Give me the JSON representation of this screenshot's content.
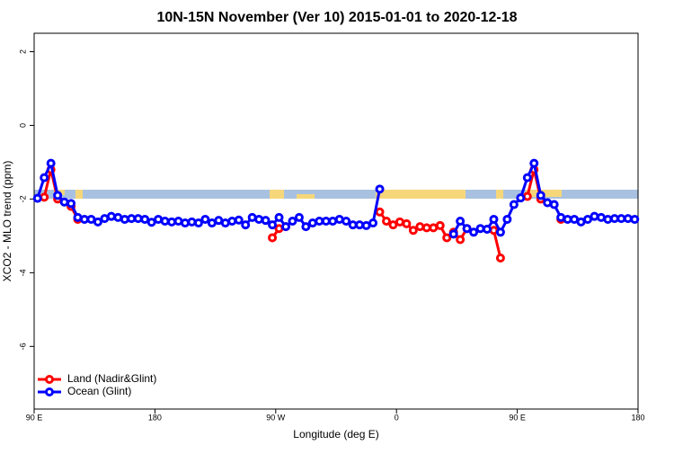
{
  "chart_data": {
    "type": "line",
    "title": "10N-15N November (Ver 10)   2015-01-01 to 2020-12-18",
    "x_label": "Longitude (deg E)",
    "y_label": "XCO2 - MLO trend (ppm)",
    "xlim": [
      90,
      540
    ],
    "xticks": [
      {
        "value": 90,
        "label": "90 E"
      },
      180,
      {
        "value": 270,
        "label": "90 W"
      },
      {
        "value": 360,
        "label": "0"
      },
      {
        "value": 450,
        "label": "90 E"
      },
      {
        "value": 540,
        "label": "180"
      }
    ],
    "ylim": [
      -7.7,
      2.5
    ],
    "yticks": [
      2,
      0,
      -2,
      -4,
      -6
    ],
    "legend": "bottom-left",
    "x": [
      92.5,
      97.5,
      102.5,
      107.5,
      112.5,
      117.5,
      122.5,
      127.5,
      132.5,
      137.5,
      142.5,
      147.5,
      152.5,
      157.5,
      162.5,
      167.5,
      172.5,
      177.5,
      182.5,
      187.5,
      192.5,
      197.5,
      202.5,
      207.5,
      212.5,
      217.5,
      222.5,
      227.5,
      232.5,
      237.5,
      242.5,
      247.5,
      252.5,
      257.5,
      262.5,
      267.5,
      272.5,
      277.5,
      282.5,
      287.5,
      292.5,
      297.5,
      302.5,
      307.5,
      312.5,
      317.5,
      322.5,
      327.5,
      332.5,
      337.5,
      342.5,
      347.5,
      352.5,
      357.5,
      362.5,
      367.5,
      372.5,
      377.5,
      382.5,
      387.5,
      392.5,
      397.5,
      402.5,
      407.5,
      412.5,
      417.5,
      422.5,
      427.5,
      432.5,
      437.5,
      442.5,
      447.5,
      452.5,
      457.5,
      462.5,
      467.5,
      472.5,
      477.5,
      482.5,
      487.5,
      492.5,
      497.5,
      502.5,
      507.5,
      512.5,
      517.5,
      522.5,
      527.5,
      532.5,
      537.5
    ],
    "series": [
      {
        "name": "Land (Nadir&Glint)",
        "color": "#ff0000",
        "values": [
          null,
          -1.95,
          -1.2,
          -2.0,
          null,
          -2.2,
          -2.55,
          null,
          null,
          null,
          null,
          null,
          null,
          null,
          null,
          null,
          null,
          null,
          null,
          null,
          null,
          null,
          null,
          null,
          null,
          null,
          null,
          null,
          null,
          null,
          null,
          null,
          null,
          null,
          null,
          -3.05,
          -2.8,
          -2.75,
          null,
          null,
          null,
          null,
          null,
          null,
          null,
          null,
          null,
          null,
          null,
          null,
          null,
          -2.35,
          -2.6,
          -2.7,
          -2.62,
          -2.67,
          -2.85,
          -2.75,
          -2.78,
          -2.78,
          -2.72,
          -3.05,
          -2.9,
          -3.1,
          -2.8,
          null,
          null,
          null,
          -2.85,
          -3.6,
          null,
          null,
          null,
          -1.93,
          -1.2,
          -2.0,
          null,
          null,
          -2.55,
          null,
          null,
          null,
          null,
          null,
          null,
          null,
          null,
          null,
          null,
          null
        ]
      },
      {
        "name": "Ocean (Glint)",
        "color": "#0000ff",
        "values": [
          -1.98,
          -1.42,
          -1.03,
          -1.9,
          -2.08,
          -2.12,
          -2.5,
          -2.55,
          -2.55,
          -2.62,
          -2.53,
          -2.47,
          -2.5,
          -2.55,
          -2.53,
          -2.53,
          -2.55,
          -2.63,
          -2.55,
          -2.6,
          -2.62,
          -2.6,
          -2.65,
          -2.62,
          -2.65,
          -2.55,
          -2.65,
          -2.58,
          -2.65,
          -2.6,
          -2.57,
          -2.7,
          -2.5,
          -2.55,
          -2.58,
          -2.7,
          -2.5,
          -2.75,
          -2.6,
          -2.5,
          -2.75,
          -2.65,
          -2.6,
          -2.6,
          -2.6,
          -2.55,
          -2.6,
          -2.7,
          -2.7,
          -2.72,
          -2.65,
          -1.73,
          null,
          null,
          null,
          null,
          null,
          null,
          null,
          null,
          null,
          null,
          -2.95,
          -2.6,
          -2.8,
          -2.9,
          -2.8,
          -2.82,
          -2.55,
          -2.9,
          -2.55,
          -2.15,
          -1.97,
          -1.42,
          -1.03,
          -1.9,
          -2.1,
          -2.15,
          -2.5,
          -2.55,
          -2.55,
          -2.62,
          -2.55,
          -2.47,
          -2.5,
          -2.55,
          -2.53,
          -2.53,
          -2.53,
          -2.55
        ]
      }
    ]
  }
}
